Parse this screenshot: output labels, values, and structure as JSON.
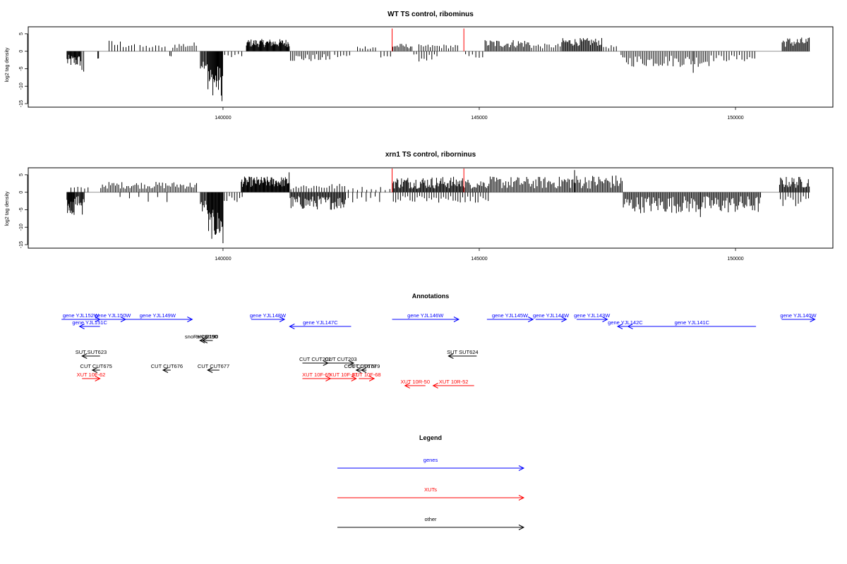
{
  "colors": {
    "gene": "#0000ff",
    "xut": "#ff0000",
    "other": "#000000",
    "signal": "#000000",
    "highlight": "#ff0000",
    "frame": "#000000"
  },
  "chart_data": [
    {
      "type": "bar",
      "title": "WT TS control, ribominus",
      "ylabel": "log2 tag density",
      "xlim": [
        136200,
        151900
      ],
      "ylim": [
        -16,
        7
      ],
      "yticks": [
        5,
        0,
        -5,
        -10,
        -15
      ],
      "xticks": [
        140000,
        145000,
        150000
      ],
      "xtick_labels": [
        "140000",
        "145000",
        "150000"
      ],
      "baseline": [
        136950,
        151450
      ],
      "highlight_positions": [
        143300,
        144700
      ],
      "highlight_height": 6.5,
      "segments": [
        {
          "from": 136950,
          "to": 137230,
          "lo": -4.5,
          "hi": -1,
          "pattern": "neg",
          "n": 22
        },
        {
          "from": 137230,
          "to": 137300,
          "lo": -6.3,
          "hi": -5,
          "pattern": "neg",
          "n": 2
        },
        {
          "from": 137550,
          "to": 137580,
          "lo": -2.2,
          "hi": -1.8,
          "pattern": "neg",
          "n": 2
        },
        {
          "from": 137750,
          "to": 138300,
          "lo": 0.8,
          "hi": 3.2,
          "pattern": "pos",
          "n": 10
        },
        {
          "from": 138350,
          "to": 138900,
          "lo": 0.8,
          "hi": 1.8,
          "pattern": "pos",
          "n": 9
        },
        {
          "from": 138950,
          "to": 139000,
          "lo": -2,
          "hi": -1.2,
          "pattern": "neg",
          "n": 2
        },
        {
          "from": 139000,
          "to": 139500,
          "lo": 0.8,
          "hi": 2.6,
          "pattern": "pos",
          "n": 12
        },
        {
          "from": 139550,
          "to": 139700,
          "lo": -5,
          "hi": -2,
          "pattern": "neg",
          "n": 8
        },
        {
          "from": 139700,
          "to": 140000,
          "lo": -12.8,
          "hi": -4,
          "pattern": "neg",
          "n": 22
        },
        {
          "from": 139970,
          "to": 139990,
          "lo": -14.8,
          "hi": -13.5,
          "pattern": "neg",
          "n": 1
        },
        {
          "from": 140000,
          "to": 140400,
          "lo": -2,
          "hi": -0.8,
          "pattern": "neg",
          "n": 6
        },
        {
          "from": 140450,
          "to": 141300,
          "lo": 1.2,
          "hi": 3.5,
          "pattern": "pos",
          "n": 65
        },
        {
          "from": 141300,
          "to": 142100,
          "lo": -3,
          "hi": -0.8,
          "pattern": "neg",
          "n": 22
        },
        {
          "from": 142150,
          "to": 142500,
          "lo": -2,
          "hi": -0.8,
          "pattern": "neg",
          "n": 6
        },
        {
          "from": 142600,
          "to": 143000,
          "lo": 0.6,
          "hi": 1.6,
          "pattern": "pos",
          "n": 8
        },
        {
          "from": 143050,
          "to": 143300,
          "lo": -2.2,
          "hi": -1,
          "pattern": "neg",
          "n": 4
        },
        {
          "from": 143300,
          "to": 143700,
          "lo": 0.8,
          "hi": 2.2,
          "pattern": "pos",
          "n": 14
        },
        {
          "from": 143700,
          "to": 144200,
          "lo": -3,
          "hi": -0.8,
          "pattern": "neg",
          "n": 10
        },
        {
          "from": 143800,
          "to": 144600,
          "lo": 0.8,
          "hi": 2,
          "pattern": "pos",
          "n": 18
        },
        {
          "from": 144700,
          "to": 145100,
          "lo": -2,
          "hi": -0.8,
          "pattern": "neg",
          "n": 6
        },
        {
          "from": 145100,
          "to": 146000,
          "lo": 1,
          "hi": 3.4,
          "pattern": "pos",
          "n": 36
        },
        {
          "from": 146000,
          "to": 146600,
          "lo": 0.8,
          "hi": 2.2,
          "pattern": "pos",
          "n": 14
        },
        {
          "from": 146600,
          "to": 147400,
          "lo": 1.5,
          "hi": 3.8,
          "pattern": "pos",
          "n": 40
        },
        {
          "from": 147400,
          "to": 147700,
          "lo": 0.8,
          "hi": 1.8,
          "pattern": "pos",
          "n": 6
        },
        {
          "from": 147750,
          "to": 149500,
          "lo": -4.5,
          "hi": -1,
          "pattern": "neg",
          "n": 50
        },
        {
          "from": 149150,
          "to": 149200,
          "lo": -6.2,
          "hi": -5.5,
          "pattern": "neg",
          "n": 1
        },
        {
          "from": 149500,
          "to": 150400,
          "lo": -3,
          "hi": -1,
          "pattern": "neg",
          "n": 18
        },
        {
          "from": 150900,
          "to": 151450,
          "lo": 1.2,
          "hi": 4,
          "pattern": "pos",
          "n": 26
        }
      ]
    },
    {
      "type": "bar",
      "title": "xrn1 TS control, riborninus",
      "ylabel": "log2 tag density",
      "xlim": [
        136200,
        151900
      ],
      "ylim": [
        -16,
        7
      ],
      "yticks": [
        5,
        0,
        -5,
        -10,
        -15
      ],
      "xticks": [
        140000,
        145000,
        150000
      ],
      "xtick_labels": [
        "140000",
        "145000",
        "150000"
      ],
      "baseline": [
        136950,
        151450
      ],
      "highlight_positions": [
        143300,
        144700
      ],
      "highlight_height": 6.8,
      "segments": [
        {
          "from": 136950,
          "to": 137100,
          "lo": -6.5,
          "hi": -2,
          "pattern": "neg",
          "n": 14
        },
        {
          "from": 137100,
          "to": 137300,
          "lo": -4.5,
          "hi": -1,
          "pattern": "neg",
          "n": 12
        },
        {
          "from": 137230,
          "to": 137280,
          "lo": -7.5,
          "hi": -6,
          "pattern": "neg",
          "n": 1
        },
        {
          "from": 137000,
          "to": 137400,
          "lo": 0.8,
          "hi": 1.6,
          "pattern": "pos",
          "n": 6
        },
        {
          "from": 137600,
          "to": 139500,
          "lo": 1,
          "hi": 3,
          "pattern": "pos",
          "n": 60
        },
        {
          "from": 137900,
          "to": 139000,
          "lo": -3,
          "hi": -1,
          "pattern": "neg",
          "n": 6
        },
        {
          "from": 139550,
          "to": 139700,
          "lo": -6,
          "hi": -2,
          "pattern": "neg",
          "n": 8
        },
        {
          "from": 139700,
          "to": 140000,
          "lo": -13.5,
          "hi": -5,
          "pattern": "neg",
          "n": 24
        },
        {
          "from": 139990,
          "to": 140010,
          "lo": -15,
          "hi": -14,
          "pattern": "neg",
          "n": 1
        },
        {
          "from": 140000,
          "to": 140400,
          "lo": -3,
          "hi": -1,
          "pattern": "neg",
          "n": 8
        },
        {
          "from": 140350,
          "to": 141300,
          "lo": 1.5,
          "hi": 4.5,
          "pattern": "pos",
          "n": 75
        },
        {
          "from": 141280,
          "to": 141300,
          "lo": 5.5,
          "hi": 6,
          "pattern": "pos",
          "n": 1
        },
        {
          "from": 141300,
          "to": 142400,
          "lo": -5,
          "hi": -1,
          "pattern": "neg",
          "n": 60
        },
        {
          "from": 141300,
          "to": 142400,
          "lo": 0.8,
          "hi": 2.5,
          "pattern": "pos",
          "n": 22
        },
        {
          "from": 142400,
          "to": 143300,
          "lo": 0.6,
          "hi": 1.6,
          "pattern": "pos",
          "n": 10
        },
        {
          "from": 142400,
          "to": 143100,
          "lo": -3,
          "hi": -1,
          "pattern": "neg",
          "n": 8
        },
        {
          "from": 143300,
          "to": 144700,
          "lo": 1,
          "hi": 4.5,
          "pattern": "pos",
          "n": 80
        },
        {
          "from": 143300,
          "to": 144700,
          "lo": -3,
          "hi": -1,
          "pattern": "neg",
          "n": 30
        },
        {
          "from": 144700,
          "to": 145200,
          "lo": 1,
          "hi": 3.8,
          "pattern": "pos",
          "n": 22
        },
        {
          "from": 144700,
          "to": 145200,
          "lo": -3,
          "hi": -1,
          "pattern": "neg",
          "n": 10
        },
        {
          "from": 145200,
          "to": 146600,
          "lo": 1,
          "hi": 4.5,
          "pattern": "pos",
          "n": 55
        },
        {
          "from": 146600,
          "to": 147800,
          "lo": 1,
          "hi": 5,
          "pattern": "pos",
          "n": 50
        },
        {
          "from": 146850,
          "to": 146870,
          "lo": 6,
          "hi": 6.6,
          "pattern": "pos",
          "n": 1
        },
        {
          "from": 147800,
          "to": 150500,
          "lo": -6,
          "hi": -1,
          "pattern": "neg",
          "n": 120
        },
        {
          "from": 149300,
          "to": 149330,
          "lo": -8,
          "hi": -7,
          "pattern": "neg",
          "n": 1
        },
        {
          "from": 150850,
          "to": 151450,
          "lo": 1.2,
          "hi": 4.5,
          "pattern": "pos",
          "n": 32
        },
        {
          "from": 150850,
          "to": 151450,
          "lo": -4,
          "hi": -1,
          "pattern": "neg",
          "n": 12
        }
      ]
    }
  ],
  "annotations": {
    "title": "Annotations",
    "features": [
      {
        "label": "gene YJL152W",
        "type": "gene",
        "from": 136850,
        "to": 137600,
        "row": 0
      },
      {
        "label": "gene YJL151C",
        "type": "gene",
        "from": 137600,
        "to": 137200,
        "row": 1
      },
      {
        "label": "gene YJL150W",
        "type": "gene",
        "from": 137600,
        "to": 138100,
        "row": 0
      },
      {
        "label": "gene YJL149W",
        "type": "gene",
        "from": 138050,
        "to": 139400,
        "row": 0
      },
      {
        "label": "gene YJL148W",
        "type": "gene",
        "from": 140550,
        "to": 141200,
        "row": 0
      },
      {
        "label": "gene YJL147C",
        "type": "gene",
        "from": 142500,
        "to": 141300,
        "row": 1
      },
      {
        "label": "gene YJL146W",
        "type": "gene",
        "from": 143300,
        "to": 144600,
        "row": 0
      },
      {
        "label": "gene YJL145W",
        "type": "gene",
        "from": 145150,
        "to": 146050,
        "row": 0
      },
      {
        "label": "gene YJL144W",
        "type": "gene",
        "from": 146100,
        "to": 146700,
        "row": 0
      },
      {
        "label": "gene YJL143W",
        "type": "gene",
        "from": 146900,
        "to": 147500,
        "row": 0
      },
      {
        "label": "gene YJL142C",
        "type": "gene",
        "from": 148000,
        "to": 147700,
        "row": 1
      },
      {
        "label": "gene YJL141C",
        "type": "gene",
        "from": 150400,
        "to": 147900,
        "row": 1
      },
      {
        "label": "gene YJL140W",
        "type": "gene",
        "from": 150900,
        "to": 151550,
        "row": 0
      },
      {
        "label": "snoR190",
        "type": "other",
        "from": 139800,
        "to": 139600,
        "row": 3
      },
      {
        "label": "snoRHCR190",
        "type": "other",
        "from": 139600,
        "to": 139550,
        "row": 3
      },
      {
        "label": "SUT SUT623",
        "type": "other",
        "from": 137600,
        "to": 137250,
        "row": 4
      },
      {
        "label": "SUT SUT624",
        "type": "other",
        "from": 144950,
        "to": 144400,
        "row": 4
      },
      {
        "label": "CUT CUT202",
        "type": "other",
        "from": 141550,
        "to": 142050,
        "row": 5
      },
      {
        "label": "CUT CUT203",
        "type": "other",
        "from": 142050,
        "to": 142550,
        "row": 5
      },
      {
        "label": "CUT CUT675",
        "type": "other",
        "from": 137600,
        "to": 137450,
        "row": 6
      },
      {
        "label": "CUT CUT676",
        "type": "other",
        "from": 138980,
        "to": 138830,
        "row": 6
      },
      {
        "label": "CUT CUT677",
        "type": "other",
        "from": 139930,
        "to": 139700,
        "row": 6
      },
      {
        "label": "CUT CUT678",
        "type": "other",
        "from": 142750,
        "to": 142600,
        "row": 6
      },
      {
        "label": "CUT CUT679",
        "type": "other",
        "from": 142800,
        "to": 142700,
        "row": 6
      },
      {
        "label": "XUT 10F-62",
        "type": "xut",
        "from": 137250,
        "to": 137600,
        "row": 7
      },
      {
        "label": "XUT 10F-65",
        "type": "xut",
        "from": 141550,
        "to": 142100,
        "row": 7
      },
      {
        "label": "XUT 10F-67",
        "type": "xut",
        "from": 142100,
        "to": 142600,
        "row": 7
      },
      {
        "label": "XUT 10F-68",
        "type": "xut",
        "from": 142650,
        "to": 142950,
        "row": 7
      },
      {
        "label": "XUT 10R-50",
        "type": "xut",
        "from": 143950,
        "to": 143550,
        "row": 8
      },
      {
        "label": "XUT 10R-52",
        "type": "xut",
        "from": 144900,
        "to": 144100,
        "row": 8
      }
    ]
  },
  "legend": {
    "title": "Legend",
    "items": [
      {
        "label": "genes",
        "type": "gene"
      },
      {
        "label": "XUTs",
        "type": "xut"
      },
      {
        "label": "other",
        "type": "other"
      }
    ]
  }
}
